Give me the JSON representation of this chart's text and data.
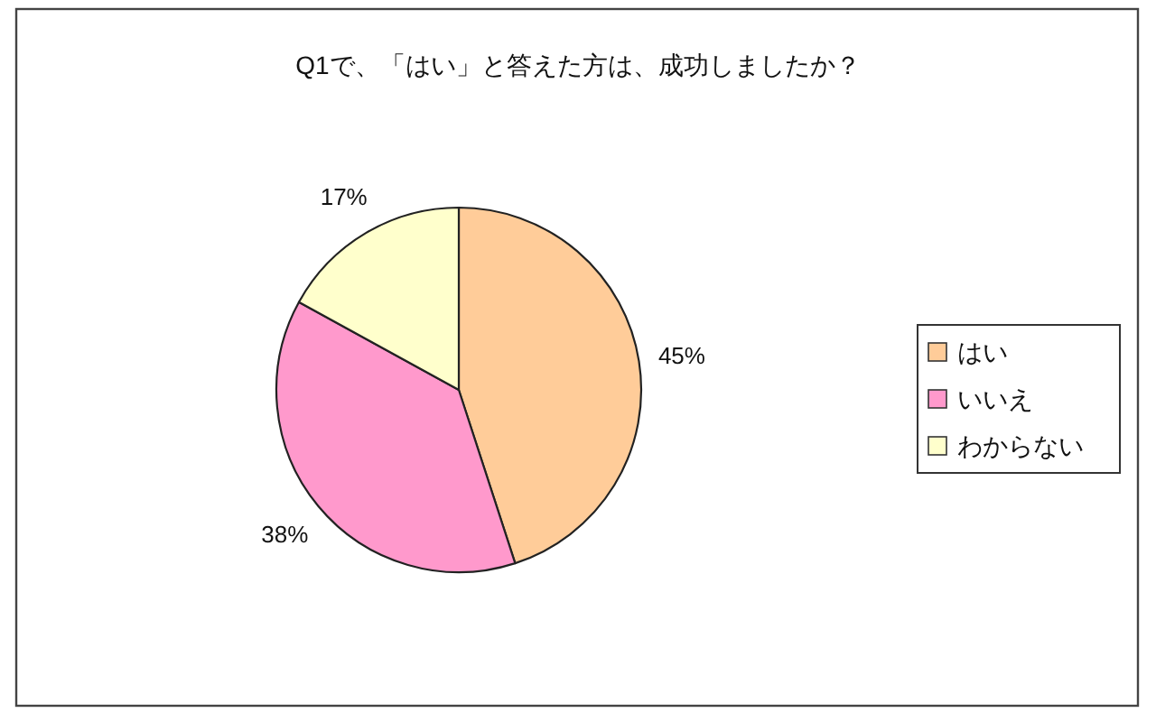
{
  "chart_data": {
    "type": "pie",
    "title": "Q1で、「はい」と答えた方は、成功しましたか？",
    "categories": [
      "はい",
      "いいえ",
      "わからない"
    ],
    "values": [
      45,
      38,
      17
    ],
    "colors": [
      "#ffcc99",
      "#ff99cc",
      "#ffffcc"
    ],
    "value_labels": [
      "45%",
      "38%",
      "17%"
    ],
    "legend": "right"
  }
}
